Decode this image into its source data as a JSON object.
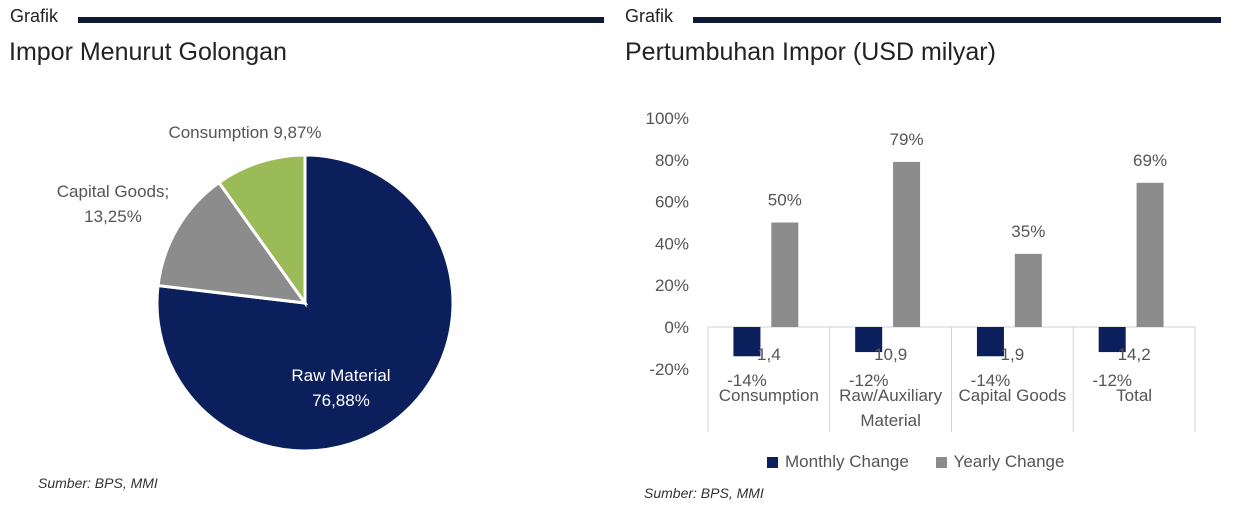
{
  "left": {
    "header_label": "Grafik",
    "title": "Impor Menurut Golongan",
    "source": "Sumber: BPS, MMI",
    "chart_data": {
      "type": "pie",
      "slices": [
        {
          "name": "Raw Material",
          "value": 76.88,
          "label_line1": "Raw Material",
          "label_line2": "76,88%",
          "color": "#0b1f5c"
        },
        {
          "name": "Capital Goods",
          "value": 13.25,
          "label_line1": "Capital Goods;",
          "label_line2": "13,25%",
          "color": "#8c8c8c"
        },
        {
          "name": "Consumption",
          "value": 9.87,
          "label_line1": "Consumption 9,87%",
          "label_line2": "",
          "color": "#9bbb59"
        }
      ]
    }
  },
  "right": {
    "header_label": "Grafik",
    "title": "Pertumbuhan Impor (USD milyar)",
    "source": "Sumber: BPS, MMI",
    "chart_data": {
      "type": "bar",
      "categories": [
        {
          "line1": "Consumption",
          "line2": "",
          "value_label": "1,4"
        },
        {
          "line1": "Raw/Auxiliary",
          "line2": "Material",
          "value_label": "10,9"
        },
        {
          "line1": "Capital Goods",
          "line2": "",
          "value_label": "1,9"
        },
        {
          "line1": "Total",
          "line2": "",
          "value_label": "14,2"
        }
      ],
      "series": [
        {
          "name": "Monthly Change",
          "color": "#0b1f5c",
          "values": [
            -14,
            -12,
            -14,
            -12
          ],
          "labels": [
            "-14%",
            "-12%",
            "-14%",
            "-12%"
          ]
        },
        {
          "name": "Yearly Change",
          "color": "#8c8c8c",
          "values": [
            50,
            79,
            35,
            69
          ],
          "labels": [
            "50%",
            "79%",
            "35%",
            "69%"
          ]
        }
      ],
      "y_ticks": [
        "100%",
        "80%",
        "60%",
        "40%",
        "20%",
        "0%",
        "-20%"
      ],
      "ylim": [
        -20,
        100
      ],
      "grid": false,
      "legend_position": "bottom"
    }
  }
}
